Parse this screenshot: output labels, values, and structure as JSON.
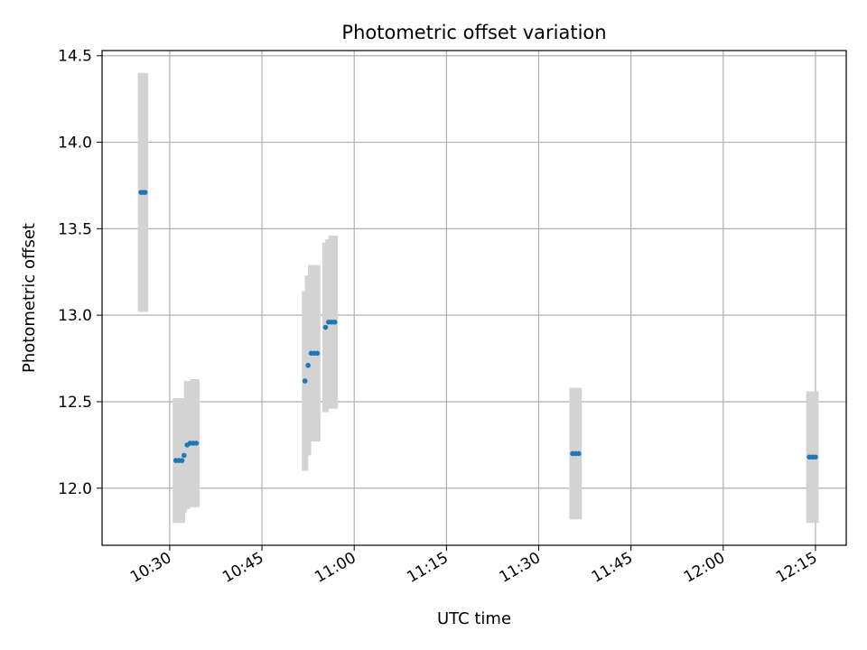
{
  "chart_data": {
    "type": "scatter",
    "title": "Photometric offset variation",
    "xlabel": "UTC time",
    "ylabel": "Photometric offset",
    "xlim": [
      "10:19",
      "12:20"
    ],
    "ylim": [
      11.67,
      14.53
    ],
    "x_ticks": [
      "10:30",
      "10:45",
      "11:00",
      "11:15",
      "11:30",
      "11:45",
      "12:00",
      "12:15"
    ],
    "y_ticks": [
      "12.0",
      "12.5",
      "13.0",
      "13.5",
      "14.0",
      "14.5"
    ],
    "grid": true,
    "colors": {
      "points": "#1f77b4",
      "error_bars": "#d3d3d3",
      "grid": "#b0b0b0"
    },
    "series": [
      {
        "points": [
          {
            "x": "10:25:20",
            "y": 13.71,
            "err": 0.69
          },
          {
            "x": "10:25:40",
            "y": 13.71,
            "err": 0.69
          },
          {
            "x": "10:26:00",
            "y": 13.71,
            "err": 0.69
          },
          {
            "x": "10:31:00",
            "y": 12.16,
            "err": 0.36
          },
          {
            "x": "10:31:30",
            "y": 12.16,
            "err": 0.36
          },
          {
            "x": "10:32:00",
            "y": 12.16,
            "err": 0.36
          },
          {
            "x": "10:32:20",
            "y": 12.19,
            "err": 0.33
          },
          {
            "x": "10:32:50",
            "y": 12.25,
            "err": 0.37
          },
          {
            "x": "10:33:20",
            "y": 12.26,
            "err": 0.36
          },
          {
            "x": "10:33:50",
            "y": 12.26,
            "err": 0.37
          },
          {
            "x": "10:34:20",
            "y": 12.26,
            "err": 0.37
          },
          {
            "x": "10:52:00",
            "y": 12.62,
            "err": 0.52
          },
          {
            "x": "10:52:30",
            "y": 12.71,
            "err": 0.52
          },
          {
            "x": "10:53:00",
            "y": 12.78,
            "err": 0.51
          },
          {
            "x": "10:53:30",
            "y": 12.78,
            "err": 0.51
          },
          {
            "x": "10:54:00",
            "y": 12.78,
            "err": 0.51
          },
          {
            "x": "10:55:20",
            "y": 12.93,
            "err": 0.49
          },
          {
            "x": "10:55:50",
            "y": 12.96,
            "err": 0.48
          },
          {
            "x": "10:56:20",
            "y": 12.96,
            "err": 0.5
          },
          {
            "x": "10:56:50",
            "y": 12.96,
            "err": 0.5
          },
          {
            "x": "11:35:30",
            "y": 12.2,
            "err": 0.38
          },
          {
            "x": "11:36:00",
            "y": 12.2,
            "err": 0.38
          },
          {
            "x": "11:36:30",
            "y": 12.2,
            "err": 0.38
          },
          {
            "x": "12:14:00",
            "y": 12.18,
            "err": 0.38
          },
          {
            "x": "12:14:30",
            "y": 12.18,
            "err": 0.38
          },
          {
            "x": "12:15:00",
            "y": 12.18,
            "err": 0.38
          }
        ]
      }
    ]
  }
}
